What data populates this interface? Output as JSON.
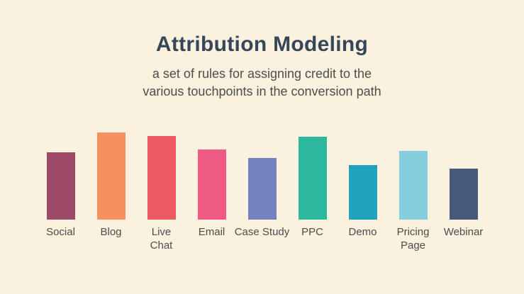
{
  "page": {
    "background_color": "#faf1de"
  },
  "header": {
    "title": "Attribution Modeling",
    "title_color": "#36475a",
    "subtitle_line1": "a set of rules for assigning credit to the",
    "subtitle_line2": "various touchpoints in the conversion path",
    "subtitle_color": "#4d4d4d"
  },
  "chart_data": {
    "type": "bar",
    "title": "Attribution Modeling",
    "subtitle": "a set of rules for assigning credit to the various touchpoints in the conversion path",
    "categories": [
      "Social",
      "Blog",
      "Live Chat",
      "Email",
      "Case Study",
      "PPC",
      "Demo",
      "Pricing Page",
      "Webinar"
    ],
    "category_lines": [
      [
        "Social"
      ],
      [
        "Blog"
      ],
      [
        "Live",
        "Chat"
      ],
      [
        "Email"
      ],
      [
        "Case Study"
      ],
      [
        "PPC"
      ],
      [
        "Demo"
      ],
      [
        "Pricing",
        "Page"
      ],
      [
        "Webinar"
      ]
    ],
    "values": [
      95,
      123,
      118,
      99,
      87,
      117,
      77,
      97,
      72
    ],
    "value_unit": "relative-height-px (no numeric axis shown)",
    "bar_colors": [
      "#9d4a68",
      "#f4915e",
      "#ee5a63",
      "#ef5a84",
      "#7381bf",
      "#2bb89f",
      "#1fa3bc",
      "#86cedd",
      "#485a7a"
    ],
    "label_color": "#4d4d4d",
    "xlabel": "",
    "ylabel": "",
    "ylim": [
      0,
      130
    ],
    "grid": false,
    "axes_visible": false,
    "legend": "none"
  }
}
